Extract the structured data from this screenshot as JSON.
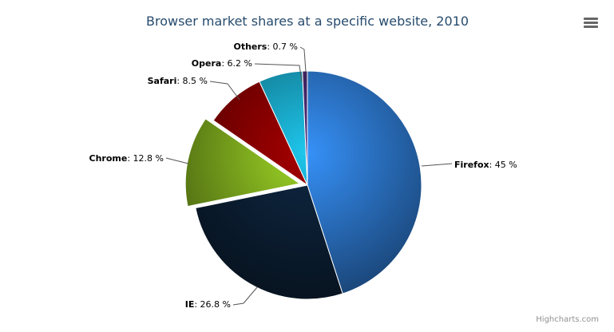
{
  "chart_data": {
    "type": "pie",
    "title": "Browser market shares at a specific website, 2010",
    "unit": "%",
    "slices": [
      {
        "name": "Firefox",
        "value": 45,
        "label": "45 %",
        "color": "#2f7ed8",
        "sliced": false
      },
      {
        "name": "IE",
        "value": 26.8,
        "label": "26.8 %",
        "color": "#0d233a",
        "sliced": false
      },
      {
        "name": "Chrome",
        "value": 12.8,
        "label": "12.8 %",
        "color": "#8bbc21",
        "sliced": true
      },
      {
        "name": "Safari",
        "value": 8.5,
        "label": "8.5 %",
        "color": "#910000",
        "sliced": false
      },
      {
        "name": "Opera",
        "value": 6.2,
        "label": "6.2 %",
        "color": "#1aadce",
        "sliced": false
      },
      {
        "name": "Others",
        "value": 0.7,
        "label": "0.7 %",
        "color": "#492970",
        "sliced": false
      }
    ]
  },
  "menu_icon": "hamburger-menu-icon",
  "credits": "Highcharts.com"
}
